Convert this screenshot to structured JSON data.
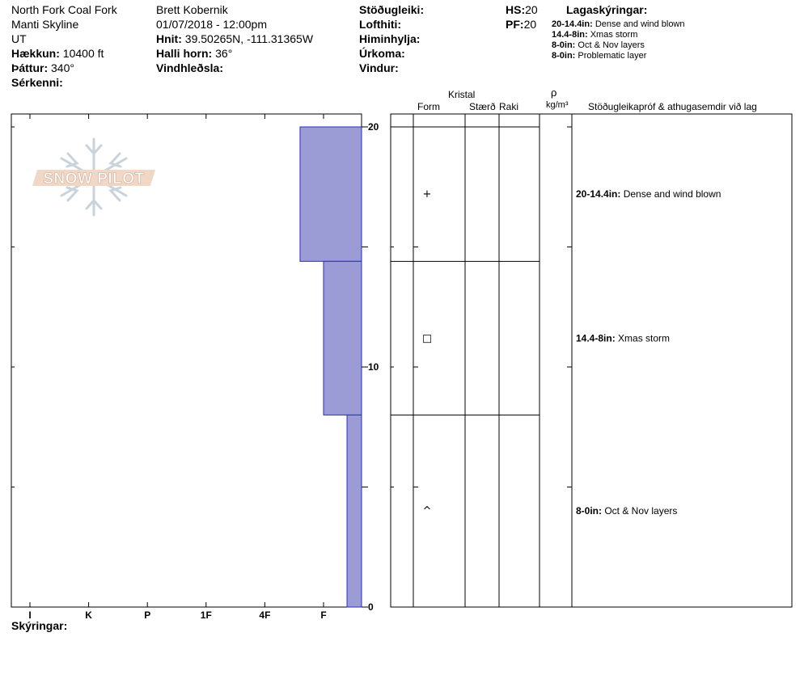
{
  "header": {
    "location": "North Fork Coal Fork",
    "area": "Manti Skyline",
    "state": "UT",
    "elevation_label": "Hækkun:",
    "elevation_value": "10400 ft",
    "aspect_label": "Þáttur:",
    "aspect_value": "340°",
    "features_label": "Sérkenni:",
    "observer": "Brett Kobernik",
    "datetime": "01/07/2018 - 12:00pm",
    "coords_label": "Hnit:",
    "coords_value": "39.50265N, -111.31365W",
    "slope_label": "Halli horn:",
    "slope_value": "36°",
    "wind_loading_label": "Vindhleðsla:",
    "stability_label": "Stöðugleiki:",
    "air_temp_label": "Lofthiti:",
    "sky_label": "Himinhylja:",
    "precip_label": "Úrkoma:",
    "wind_label": "Vindur:",
    "hs_label": "HS:",
    "hs_value": "20",
    "pf_label": "PF:",
    "pf_value": "20",
    "legend_title": "Lagaskýringar:",
    "legend": [
      {
        "range": "20-14.4in:",
        "text": "Dense and wind blown"
      },
      {
        "range": "14.4-8in:",
        "text": "Xmas storm"
      },
      {
        "range": "8-0in:",
        "text": "Oct & Nov layers"
      },
      {
        "range": "8-0in:",
        "text": "Problematic layer"
      }
    ]
  },
  "columns": {
    "crystal": "Kristal",
    "form": "Form",
    "size": "Stærð",
    "moisture": "Raki",
    "rho": "ρ",
    "density_unit": "kg/m³",
    "comments": "Stöðugleikapróf & athugasemdir við lag"
  },
  "logo_text": "SNOW PILOT",
  "footer": {
    "notes_label": "Skýringar:"
  },
  "chart_data": {
    "type": "bar",
    "orientation": "horizontal",
    "title": "",
    "xlabel": "",
    "ylabel": "",
    "hardness_scale": [
      "I",
      "K",
      "P",
      "1F",
      "4F",
      "F"
    ],
    "ylim": [
      0,
      20
    ],
    "ytick_labels": [
      "0",
      "10",
      "20"
    ],
    "bar_color": "#9b9bd6",
    "layers": [
      {
        "top": 20,
        "bottom": 14.4,
        "hardness_index": 4.6,
        "form_symbol": "+",
        "comment_range": "20-14.4in:",
        "comment": "Dense and wind blown"
      },
      {
        "top": 14.4,
        "bottom": 8,
        "hardness_index": 5.0,
        "form_symbol": "□",
        "comment_range": "14.4-8in:",
        "comment": "Xmas storm"
      },
      {
        "top": 8,
        "bottom": 0,
        "hardness_index": 5.4,
        "form_symbol": "^",
        "comment_range": "8-0in:",
        "comment": "Oct & Nov layers"
      }
    ]
  }
}
